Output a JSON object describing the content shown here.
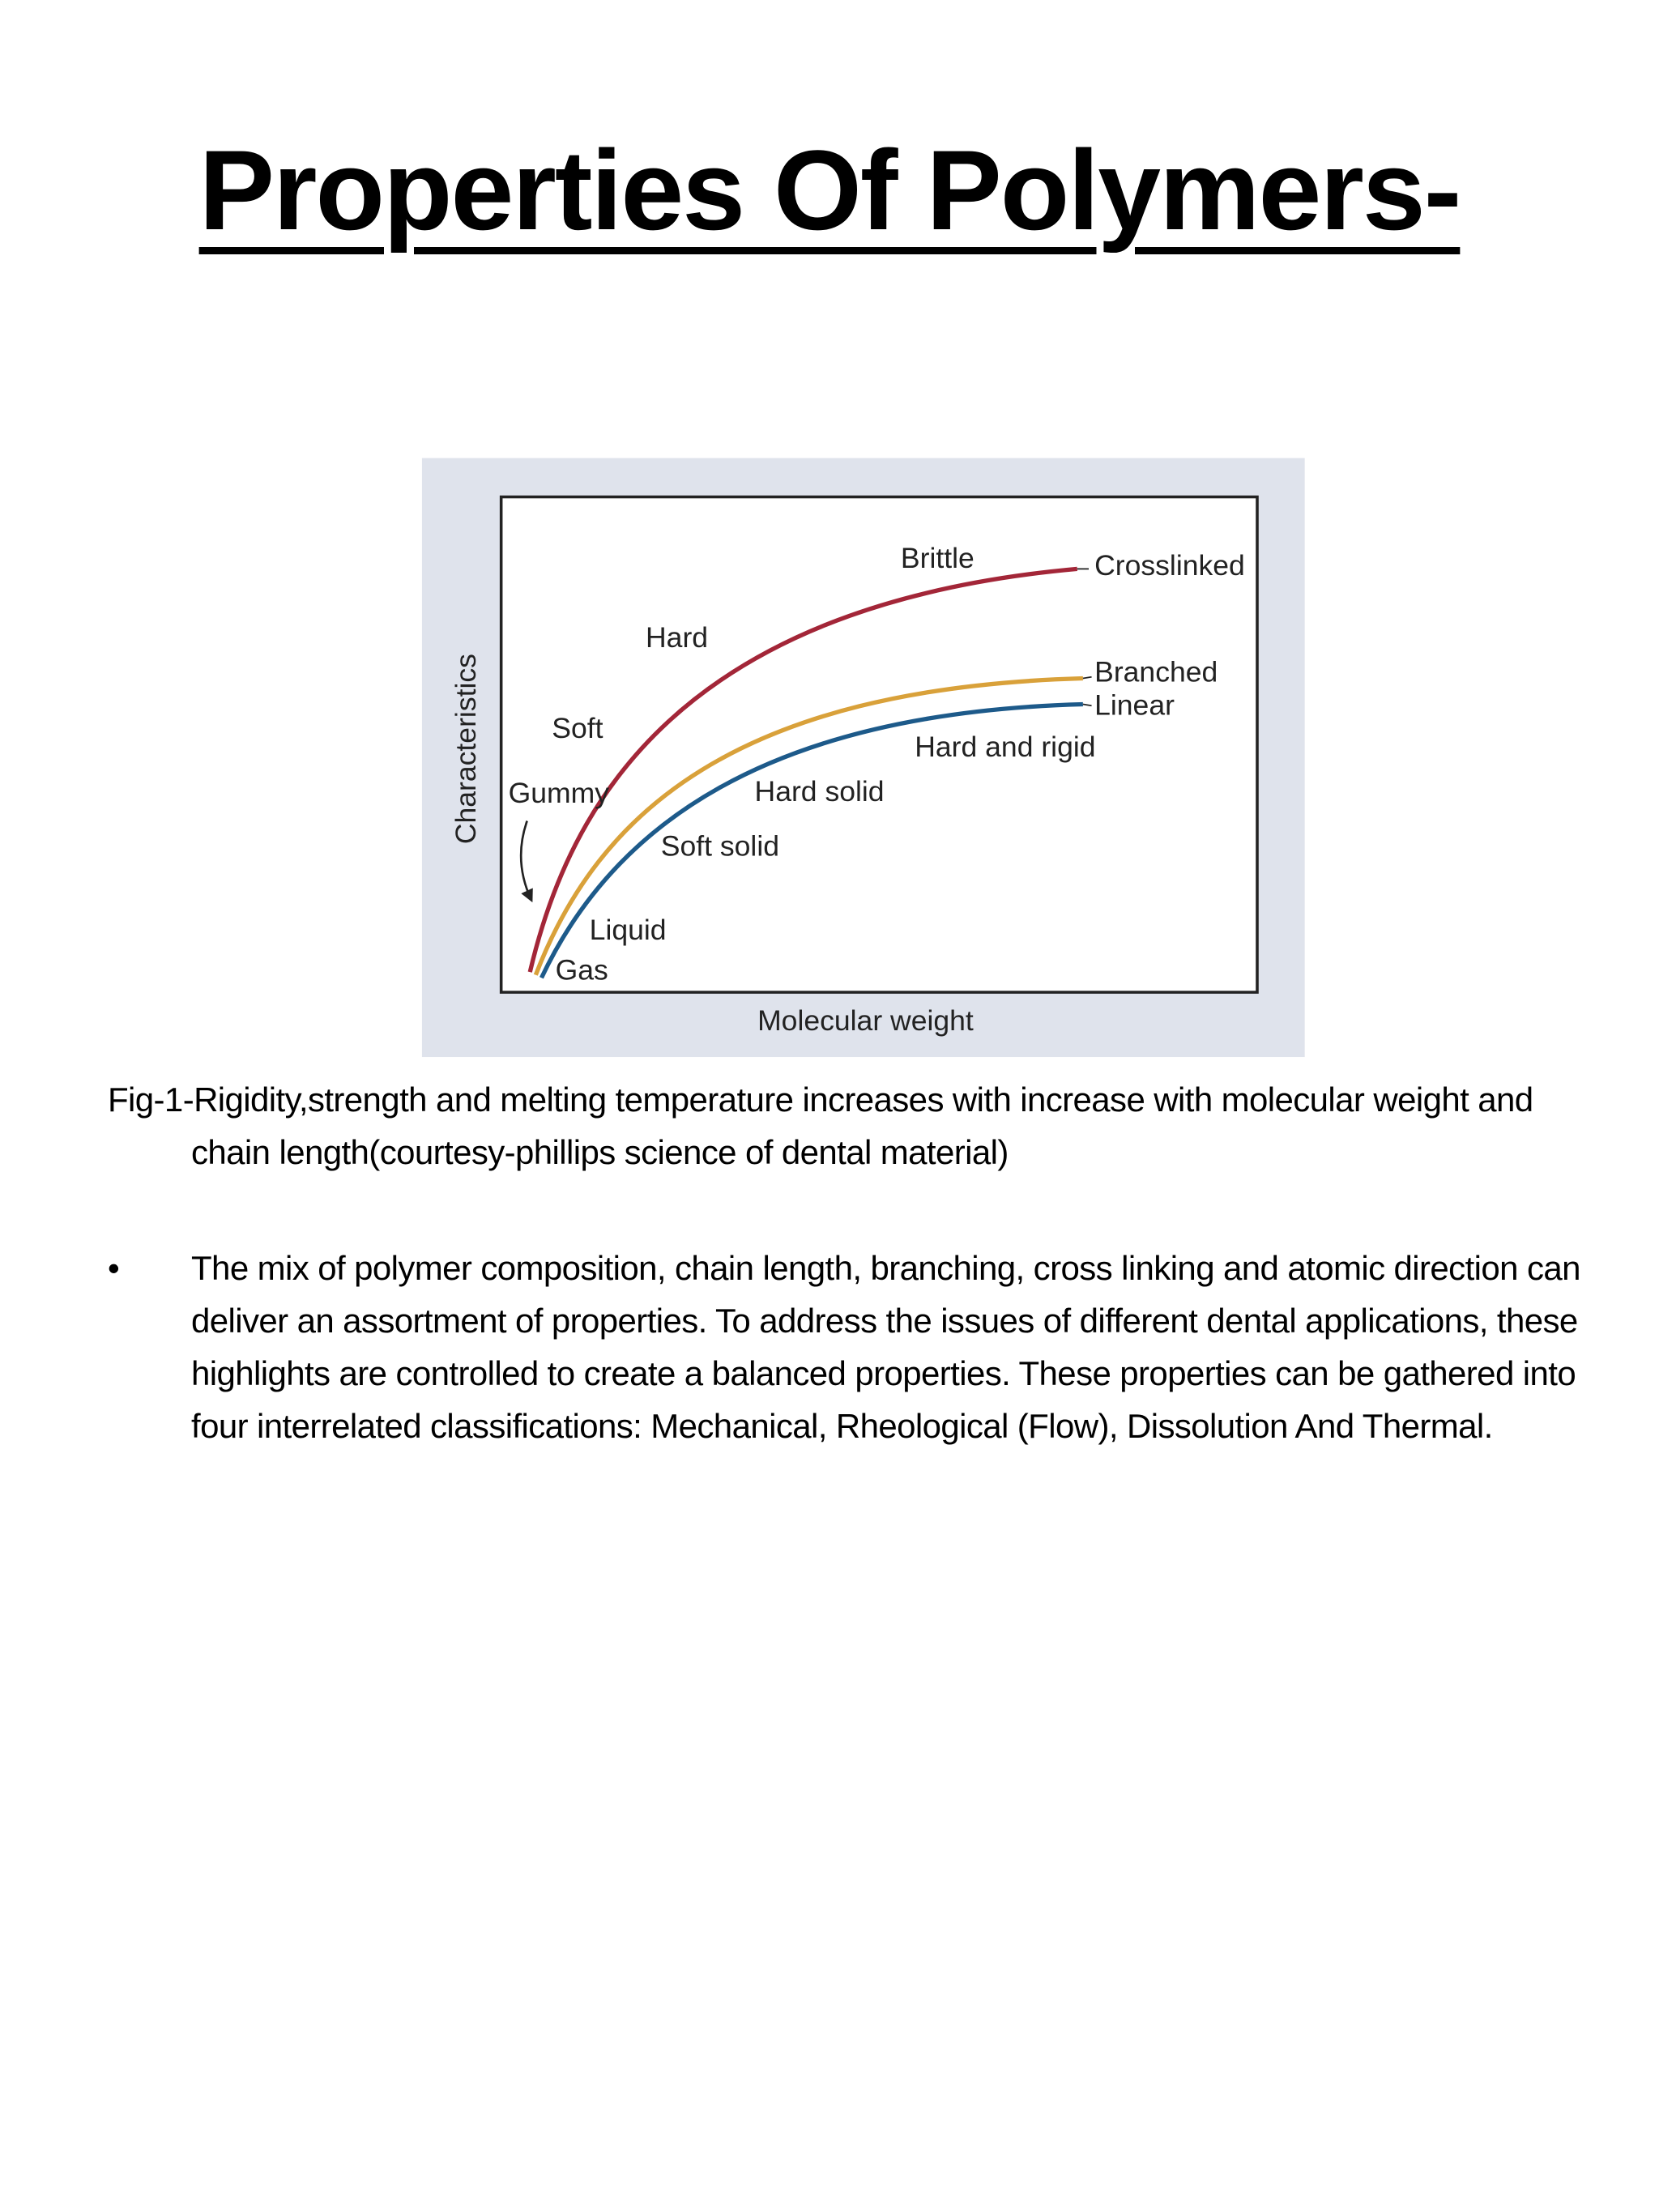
{
  "title": "Properties Of Polymers-",
  "figure": {
    "y_axis_label": "Characteristics",
    "x_axis_label": "Molecular weight",
    "curve_labels": [
      "Crosslinked",
      "Branched",
      "Linear"
    ],
    "state_labels": [
      "Brittle",
      "Hard",
      "Soft",
      "Gummy",
      "Hard and rigid",
      "Hard solid",
      "Soft solid",
      "Liquid",
      "Gas"
    ]
  },
  "caption": "Fig-1-Rigidity,strength and melting temperature increases with increase with molecular weight and chain length(courtesy-phillips science of dental material)",
  "bullets": [
    "The mix of polymer composition, chain length, branching, cross linking and atomic direction can deliver an assortment of properties. To address the issues of different dental applications, these highlights are controlled to create a balanced properties. These properties can be gathered into four interrelated classifications: Mechanical, Rheological (Flow), Dissolution And Thermal."
  ]
}
